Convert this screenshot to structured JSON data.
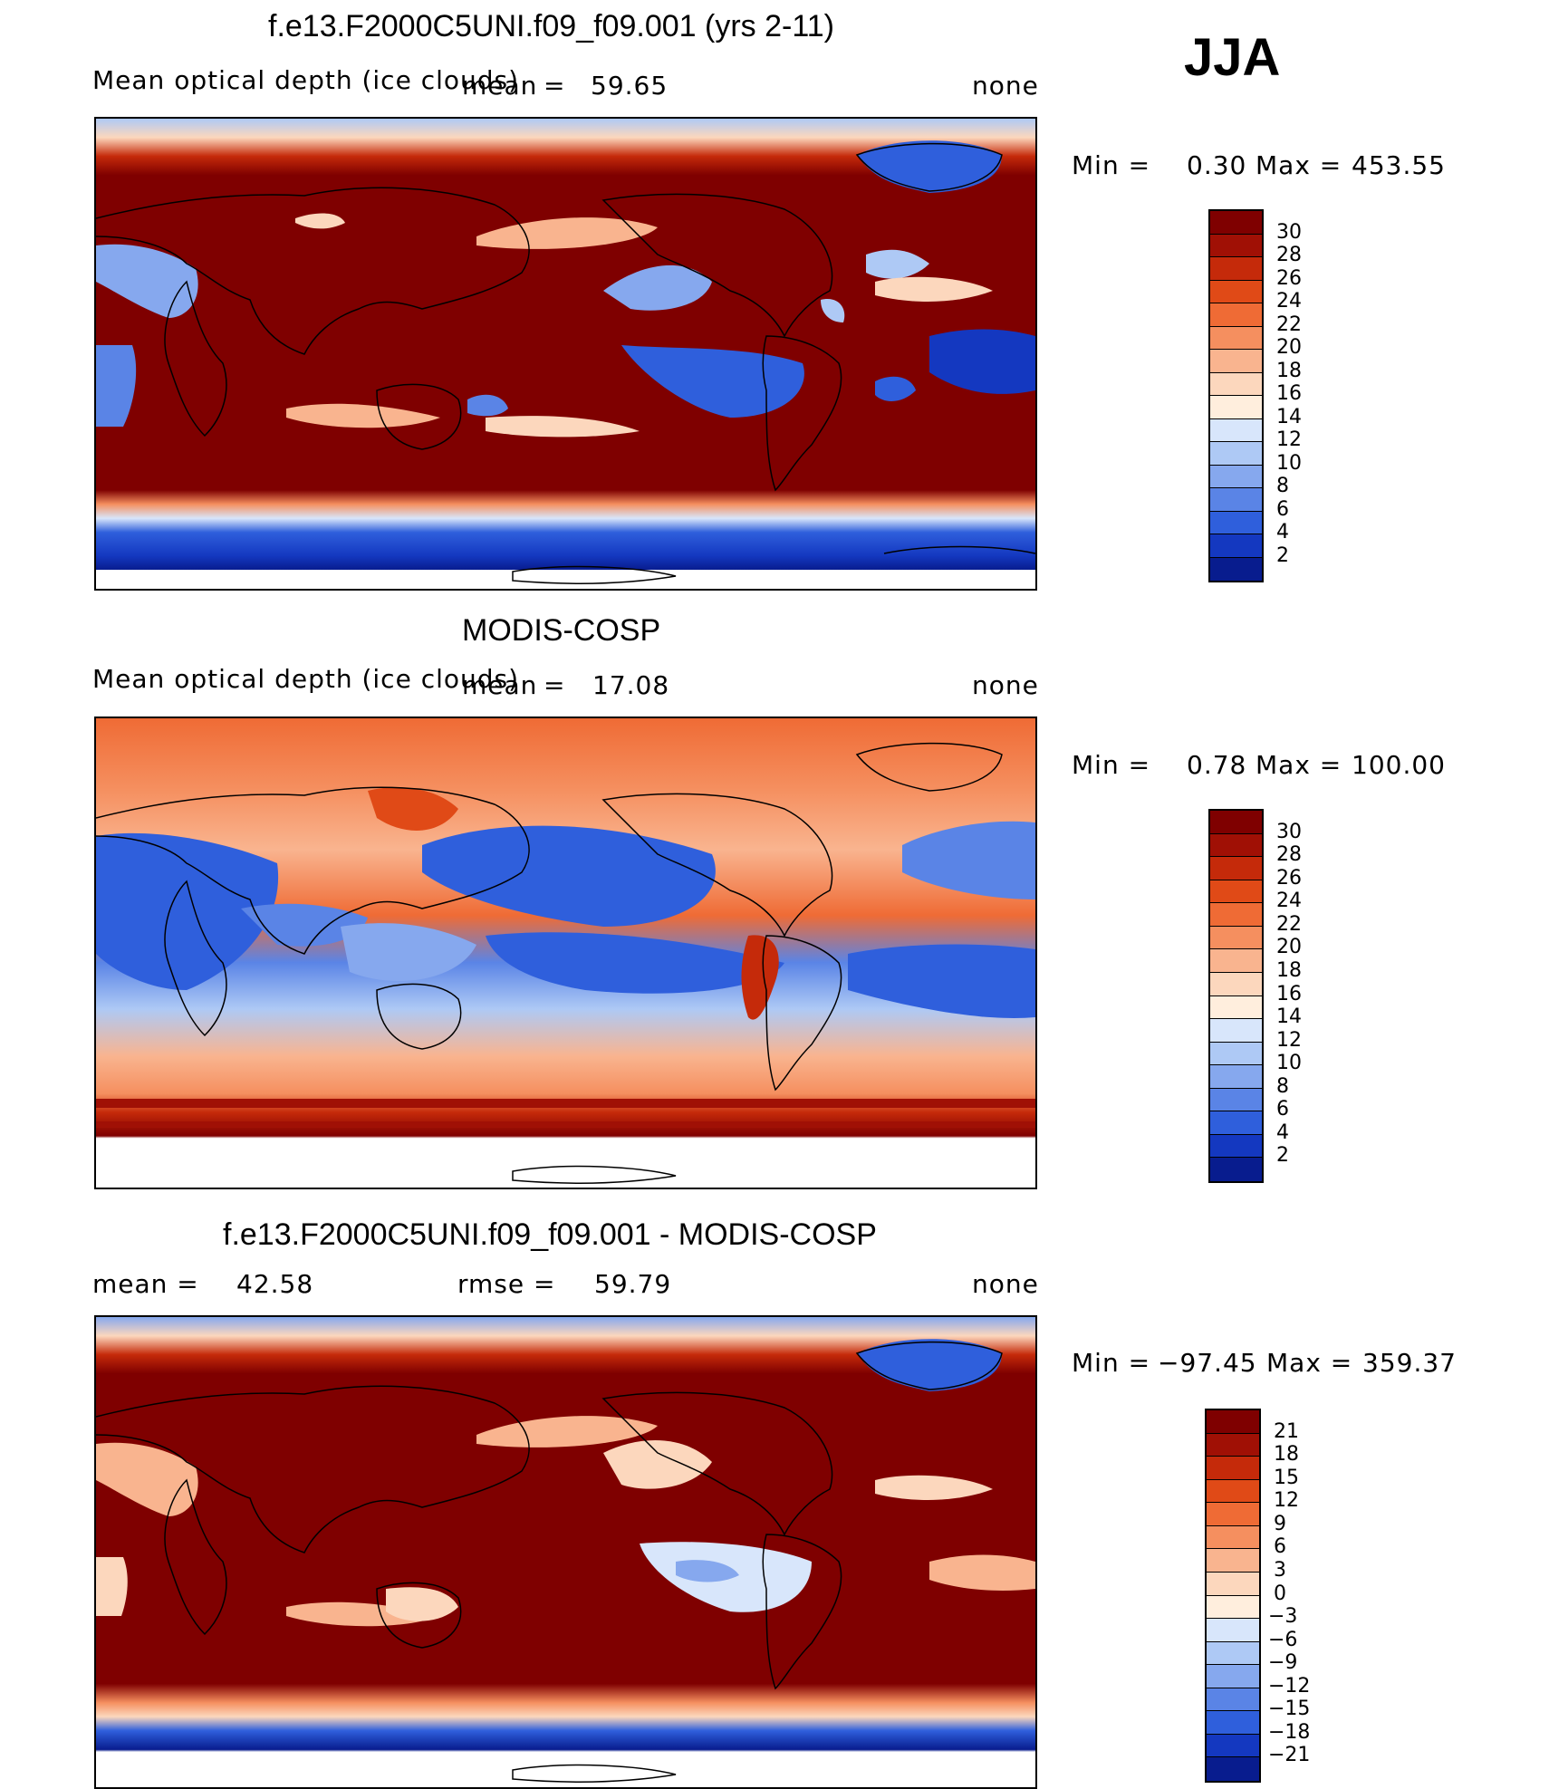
{
  "season": "JJA",
  "panels": [
    {
      "title": "f.e13.F2000C5UNI.f09_f09.001 (yrs 2-11)",
      "left_label": "Mean optical depth (ice clouds)",
      "stat1_label": "mean",
      "stat1_value": "59.65",
      "stat2_label": "",
      "stat2_value": "",
      "units": "none",
      "min_label": "Min =",
      "min_value": "0.30",
      "max_label": "Max =",
      "max_value": "453.55",
      "levels": [
        "30",
        "28",
        "26",
        "24",
        "22",
        "20",
        "18",
        "16",
        "14",
        "12",
        "10",
        "8",
        "6",
        "4",
        "2"
      ]
    },
    {
      "title": "MODIS-COSP",
      "left_label": "Mean optical depth (ice clouds)",
      "stat1_label": "mean",
      "stat1_value": "17.08",
      "stat2_label": "",
      "stat2_value": "",
      "units": "none",
      "min_label": "Min =",
      "min_value": "0.78",
      "max_label": "Max =",
      "max_value": "100.00",
      "levels": [
        "30",
        "28",
        "26",
        "24",
        "22",
        "20",
        "18",
        "16",
        "14",
        "12",
        "10",
        "8",
        "6",
        "4",
        "2"
      ]
    },
    {
      "title": "f.e13.F2000C5UNI.f09_f09.001 - MODIS-COSP",
      "left_label": "",
      "stat1_label": "mean =",
      "stat1_value": "42.58",
      "stat2_label": "rmse =",
      "stat2_value": "59.79",
      "units": "none",
      "min_label": "Min =",
      "min_value": "−97.45",
      "max_label": "Max =",
      "max_value": "359.37",
      "levels": [
        "21",
        "18",
        "15",
        "12",
        "9",
        "6",
        "3",
        "0",
        "−3",
        "−6",
        "−9",
        "−12",
        "−15",
        "−18",
        "−21"
      ]
    }
  ],
  "colors": {
    "scale": [
      "#7f0000",
      "#a01005",
      "#c52a0a",
      "#e04a17",
      "#ef6b35",
      "#f58f5f",
      "#f9b48f",
      "#fcd7bd",
      "#ffeedd",
      "#d8e6fb",
      "#aec9f5",
      "#86a8ee",
      "#5a84e6",
      "#2f5fdc",
      "#1438c0",
      "#081c8e"
    ],
    "land_line": "#000000"
  },
  "chart_data": [
    {
      "type": "heatmap",
      "title": "f.e13.F2000C5UNI.f09_f09.001 (yrs 2-11)",
      "variable": "Mean optical depth (ice clouds)",
      "mean": 59.65,
      "min": 0.3,
      "max": 453.55,
      "units": "none",
      "contour_levels": [
        2,
        4,
        6,
        8,
        10,
        12,
        14,
        16,
        18,
        20,
        22,
        24,
        26,
        28,
        30
      ],
      "pattern": "mostly >30 (dark red); low values (blue) in Southern Ocean band, Greenland, subtropical eastern Pacific and Atlantic, Sahara/Arabia"
    },
    {
      "type": "heatmap",
      "title": "MODIS-COSP",
      "variable": "Mean optical depth (ice clouds)",
      "mean": 17.08,
      "min": 0.78,
      "max": 100.0,
      "units": "none",
      "contour_levels": [
        2,
        4,
        6,
        8,
        10,
        12,
        14,
        16,
        18,
        20,
        22,
        24,
        26,
        28,
        30
      ],
      "pattern": "high values over continents and mid-latitudes; low values (blue) over subtropical oceans and northern Africa"
    },
    {
      "type": "heatmap",
      "title": "f.e13.F2000C5UNI.f09_f09.001 - MODIS-COSP",
      "variable": "difference",
      "mean": 42.58,
      "rmse": 59.79,
      "min": -97.45,
      "max": 359.37,
      "units": "none",
      "contour_levels": [
        -21,
        -18,
        -15,
        -12,
        -9,
        -6,
        -3,
        0,
        3,
        6,
        9,
        12,
        15,
        18,
        21
      ],
      "pattern": "mostly positive (model higher); negative over Greenland, high-latitude Southern Ocean band"
    }
  ]
}
